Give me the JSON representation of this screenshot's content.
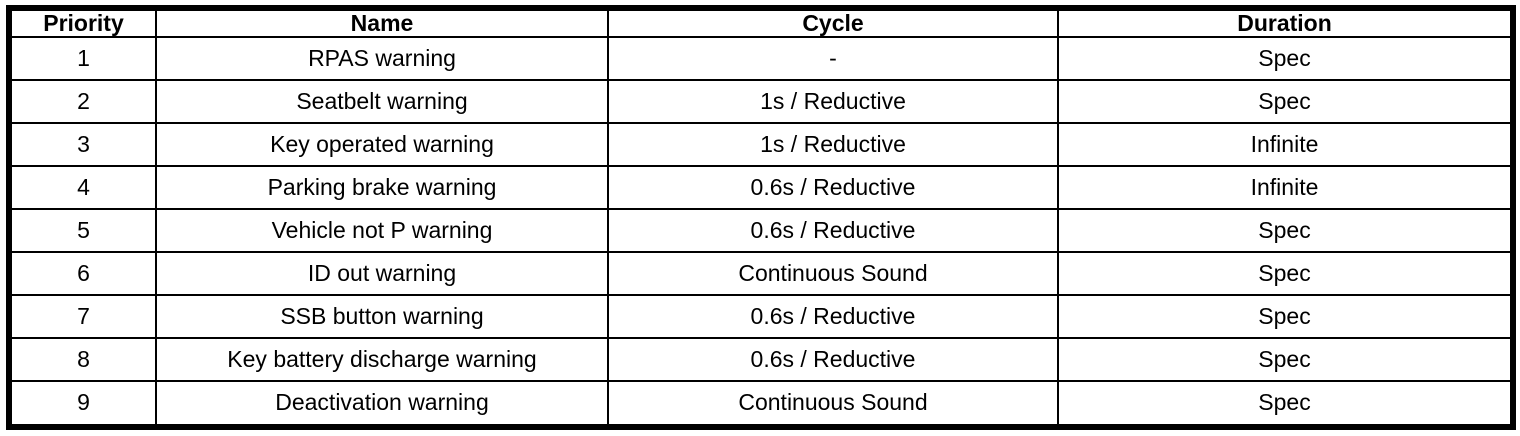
{
  "table": {
    "title": "warning-priority-table",
    "columns": [
      "Priority",
      "Name",
      "Cycle",
      "Duration"
    ],
    "rows": [
      [
        "1",
        "RPAS warning",
        "-",
        "Spec"
      ],
      [
        "2",
        "Seatbelt warning",
        "1s / Reductive",
        "Spec"
      ],
      [
        "3",
        "Key operated warning",
        "1s / Reductive",
        "Infinite"
      ],
      [
        "4",
        "Parking brake warning",
        "0.6s / Reductive",
        "Infinite"
      ],
      [
        "5",
        "Vehicle not P warning",
        "0.6s / Reductive",
        "Spec"
      ],
      [
        "6",
        "ID out warning",
        "Continuous Sound",
        "Spec"
      ],
      [
        "7",
        "SSB button warning",
        "0.6s / Reductive",
        "Spec"
      ],
      [
        "8",
        "Key battery discharge warning",
        "0.6s / Reductive",
        "Spec"
      ],
      [
        "9",
        "Deactivation warning",
        "Continuous Sound",
        "Spec"
      ]
    ],
    "colors": {
      "border": "#000000",
      "background": "#ffffff",
      "text": "#000000"
    }
  }
}
